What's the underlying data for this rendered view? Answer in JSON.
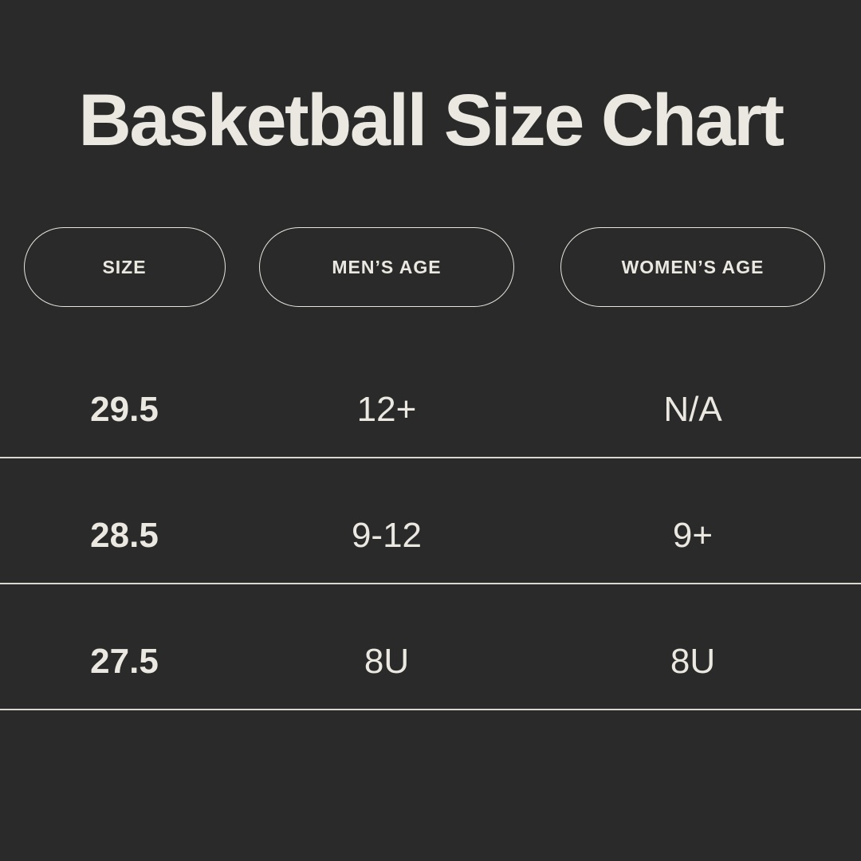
{
  "title": "Basketball Size Chart",
  "colors": {
    "background": "#2a2a2a",
    "text": "#eae8e1",
    "divider": "#d9d7d0",
    "pill_border": "#e6e4dd"
  },
  "table": {
    "columns": [
      {
        "id": "size",
        "label": "SIZE"
      },
      {
        "id": "mens_age",
        "label": "MEN’S AGE"
      },
      {
        "id": "womens_age",
        "label": "WOMEN’S AGE"
      }
    ],
    "rows": [
      {
        "size": "29.5",
        "mens_age": "12+",
        "womens_age": "N/A"
      },
      {
        "size": "28.5",
        "mens_age": "9-12",
        "womens_age": "9+"
      },
      {
        "size": "27.5",
        "mens_age": "8U",
        "womens_age": "8U"
      }
    ]
  },
  "chart_data": {
    "type": "table",
    "title": "Basketball Size Chart",
    "columns": [
      "SIZE",
      "MEN’S AGE",
      "WOMEN’S AGE"
    ],
    "rows": [
      [
        "29.5",
        "12+",
        "N/A"
      ],
      [
        "28.5",
        "9-12",
        "9+"
      ],
      [
        "27.5",
        "8U",
        "8U"
      ]
    ],
    "layout_hints": {
      "header_style": "outlined-pill",
      "row_dividers": "full-width thin lines",
      "theme": "dark"
    }
  }
}
